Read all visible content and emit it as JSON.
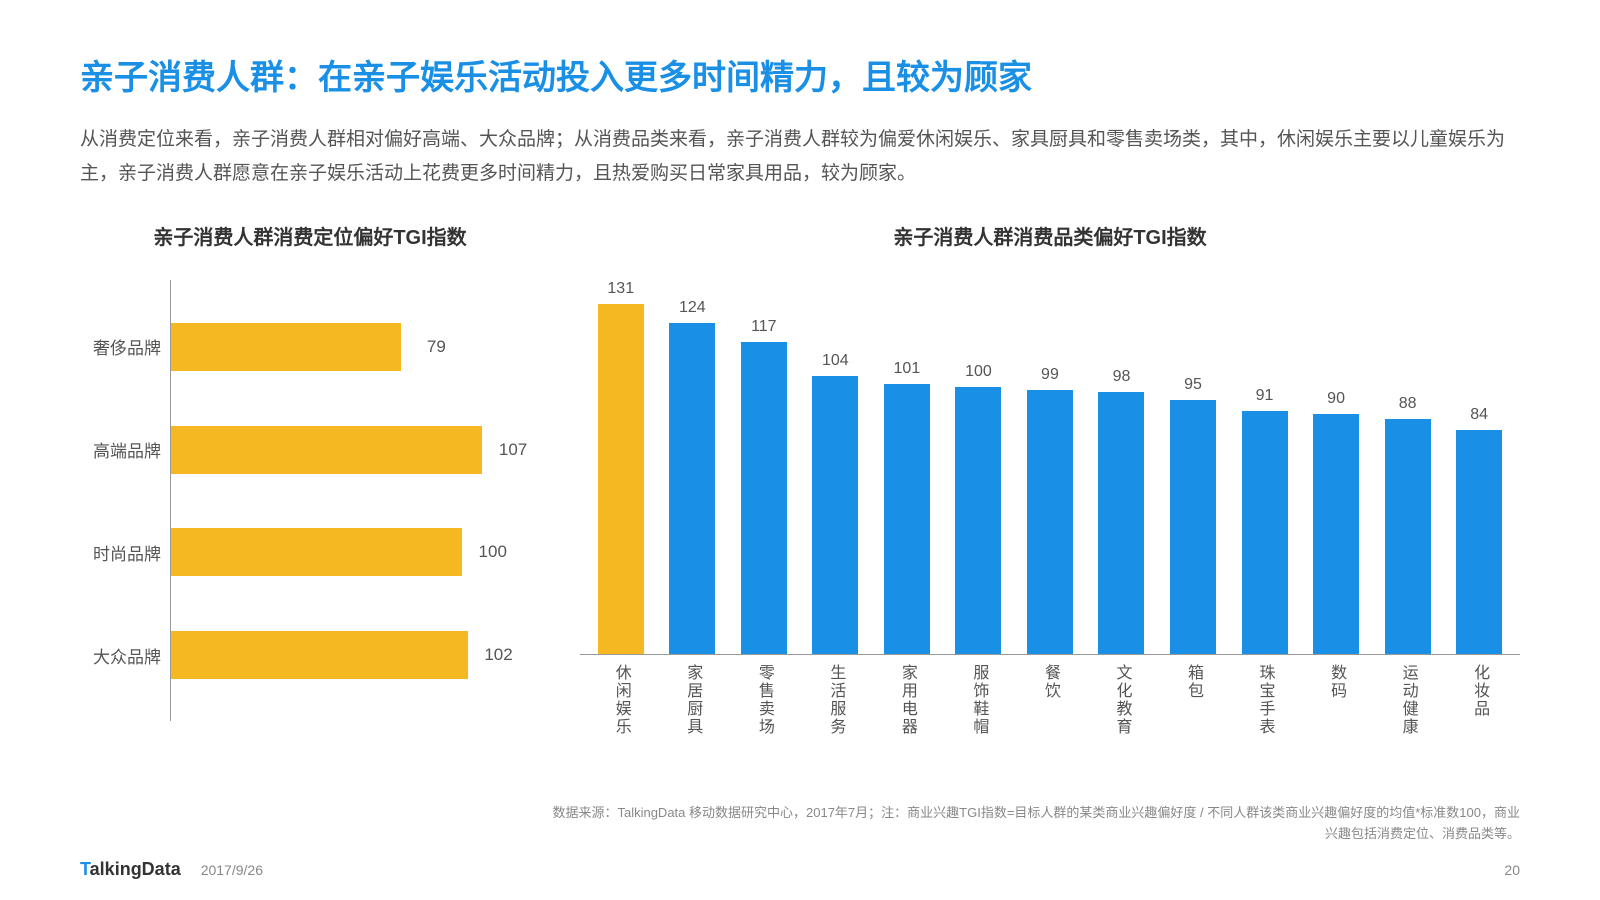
{
  "title": "亲子消费人群：在亲子娱乐活动投入更多时间精力，且较为顾家",
  "description": "从消费定位来看，亲子消费人群相对偏好高端、大众品牌；从消费品类来看，亲子消费人群较为偏爱休闲娱乐、家具厨具和零售卖场类，其中，休闲娱乐主要以儿童娱乐为主，亲子消费人群愿意在亲子娱乐活动上花费更多时间精力，且热爱购买日常家具用品，较为顾家。",
  "left_chart": {
    "type": "bar-horizontal",
    "title": "亲子消费人群消费定位偏好TGI指数",
    "max_value": 110,
    "bar_color": "#f5b820",
    "label_color": "#555555",
    "value_color": "#555555",
    "label_fontsize": 17,
    "bars": [
      {
        "label": "奢侈品牌",
        "value": 79
      },
      {
        "label": "高端品牌",
        "value": 107
      },
      {
        "label": "时尚品牌",
        "value": 100
      },
      {
        "label": "大众品牌",
        "value": 102
      }
    ]
  },
  "right_chart": {
    "type": "bar-vertical",
    "title": "亲子消费人群消费品类偏好TGI指数",
    "max_value": 135,
    "default_color": "#1a8fe6",
    "highlight_color": "#f5b820",
    "label_color": "#555555",
    "value_color": "#555555",
    "label_fontsize": 16,
    "bars": [
      {
        "label": "休闲娱乐",
        "value": 131,
        "highlight": true
      },
      {
        "label": "家居厨具",
        "value": 124
      },
      {
        "label": "零售卖场",
        "value": 117
      },
      {
        "label": "生活服务",
        "value": 104
      },
      {
        "label": "家用电器",
        "value": 101
      },
      {
        "label": "服饰鞋帽",
        "value": 100
      },
      {
        "label": "餐饮",
        "value": 99
      },
      {
        "label": "文化教育",
        "value": 98
      },
      {
        "label": "箱包",
        "value": 95
      },
      {
        "label": "珠宝手表",
        "value": 91
      },
      {
        "label": "数码",
        "value": 90
      },
      {
        "label": "运动健康",
        "value": 88
      },
      {
        "label": "化妆品",
        "value": 84
      }
    ]
  },
  "footnote": "数据来源：TalkingData 移动数据研究中心，2017年7月；注：商业兴趣TGI指数=目标人群的某类商业兴趣偏好度 / 不同人群该类商业兴趣偏好度的均值*标准数100，商业兴趣包括消费定位、消费品类等。",
  "footer": {
    "logo_prefix": "T",
    "logo_rest": "alkingData",
    "date": "2017/9/26",
    "page": "20"
  },
  "colors": {
    "title": "#1a8fe6",
    "text": "#555555",
    "axis": "#999999",
    "background": "#ffffff"
  }
}
